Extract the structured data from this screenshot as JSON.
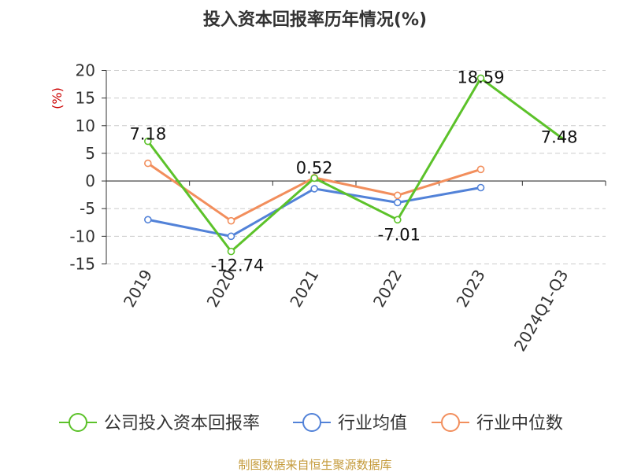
{
  "chart_data": {
    "type": "line",
    "title": "投入资本回报率历年情况(%)",
    "ylabel": "(%)",
    "xlabel": "",
    "categories": [
      "2019",
      "2020",
      "2021",
      "2022",
      "2023",
      "2024Q1-Q3"
    ],
    "ylim": [
      -15,
      20
    ],
    "yticks": [
      20,
      15,
      10,
      5,
      0,
      -5,
      -10,
      -15
    ],
    "grid": true,
    "legend_position": "bottom",
    "series": [
      {
        "name": "公司投入资本回报率",
        "color": "#5cc22a",
        "values": [
          7.18,
          -12.74,
          0.52,
          -7.01,
          18.59,
          7.48
        ],
        "labels": [
          "7.18",
          "-12.74",
          "0.52",
          "-7.01",
          "18.59",
          "7.48"
        ],
        "show_markers": [
          true,
          true,
          true,
          true,
          true,
          false
        ]
      },
      {
        "name": "行业均值",
        "color": "#5282d8",
        "values": [
          -7.0,
          -10.0,
          -1.4,
          -3.9,
          -1.2,
          null
        ]
      },
      {
        "name": "行业中位数",
        "color": "#f28e5c",
        "values": [
          3.2,
          -7.2,
          0.6,
          -2.6,
          2.1,
          null
        ]
      }
    ],
    "source": "制图数据来自恒生聚源数据库",
    "colors": {
      "title": "#333333",
      "axis": "#333333",
      "grid": "#cccccc",
      "ylabel": "#cc0000",
      "source": "#c49a3a"
    }
  }
}
